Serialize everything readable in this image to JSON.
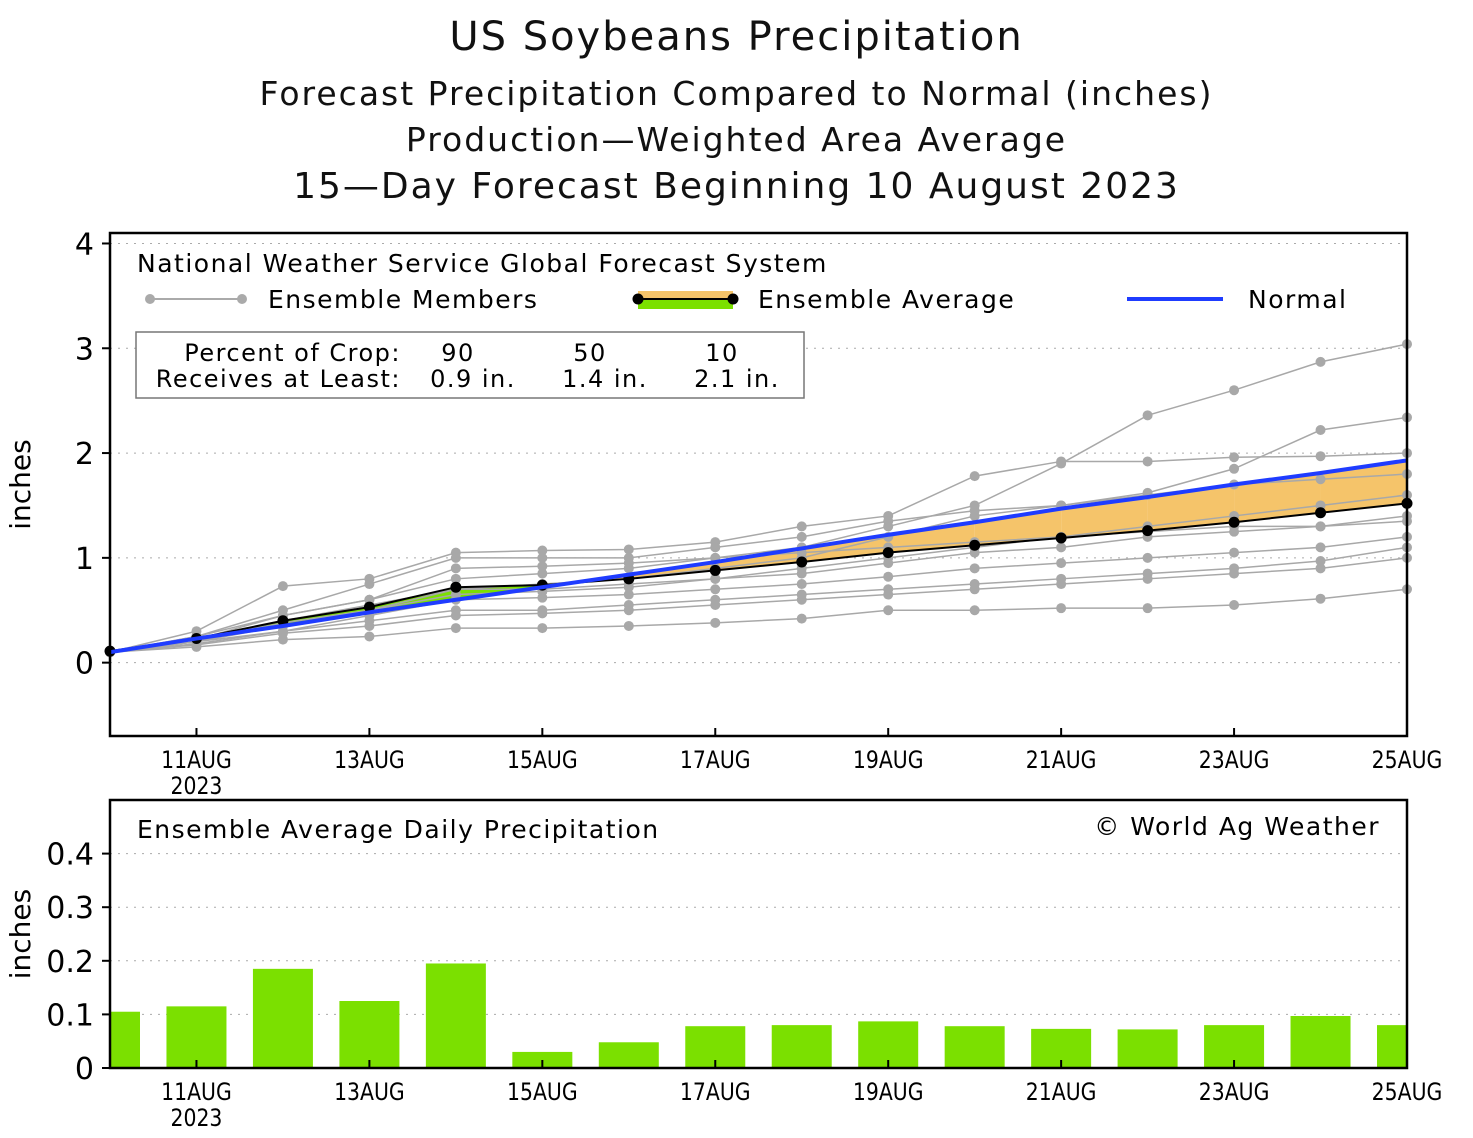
{
  "title": "US Soybeans Precipitation",
  "subtitle1": "Forecast Precipitation Compared to Normal (inches)",
  "subtitle2": "Production—Weighted Area Average",
  "subtitle3": "15—Day Forecast Beginning 10 August 2023",
  "chart_data": [
    {
      "type": "line",
      "panel_label": "National Weather Service Global Forecast System",
      "ylabel": "inches",
      "ylim": [
        -0.7,
        4.1
      ],
      "yticks": [
        "0",
        "1",
        "2",
        "3",
        "4"
      ],
      "grid": "dotted horizontal",
      "x": [
        "10AUG",
        "11AUG",
        "12AUG",
        "13AUG",
        "14AUG",
        "15AUG",
        "16AUG",
        "17AUG",
        "18AUG",
        "19AUG",
        "20AUG",
        "21AUG",
        "22AUG",
        "23AUG",
        "24AUG",
        "25AUG"
      ],
      "xticks": [
        "11AUG",
        "13AUG",
        "15AUG",
        "17AUG",
        "19AUG",
        "21AUG",
        "23AUG",
        "25AUG"
      ],
      "xtick_year": "2023",
      "legend": {
        "members": "Ensemble Members",
        "average": "Ensemble Average",
        "normal": "Normal"
      },
      "crop_box": {
        "row1_label": "Percent of Crop:",
        "row2_label": "Receives at Least:",
        "percents": [
          "90",
          "50",
          "10"
        ],
        "amounts": [
          "0.9 in.",
          "1.4 in.",
          "2.1 in."
        ]
      },
      "colors": {
        "members": "#a8a8a8",
        "average": "#000000",
        "normal": "#1f3cff",
        "above_normal": "#7be000",
        "below_normal": "#f5c46a"
      },
      "average": [
        0.11,
        0.23,
        0.4,
        0.53,
        0.72,
        0.74,
        0.8,
        0.88,
        0.96,
        1.05,
        1.12,
        1.19,
        1.26,
        1.34,
        1.43,
        1.52
      ],
      "normal": [
        0.1,
        0.23,
        0.35,
        0.48,
        0.6,
        0.72,
        0.84,
        0.96,
        1.09,
        1.22,
        1.34,
        1.47,
        1.58,
        1.7,
        1.81,
        1.93
      ],
      "members": [
        [
          0.1,
          0.25,
          0.45,
          0.6,
          0.8,
          0.85,
          0.9,
          1.0,
          1.1,
          1.3,
          1.5,
          1.9,
          2.36,
          2.6,
          2.87,
          3.04
        ],
        [
          0.1,
          0.2,
          0.35,
          0.5,
          0.7,
          0.75,
          0.8,
          0.9,
          1.0,
          1.2,
          1.4,
          1.5,
          1.62,
          1.85,
          2.22,
          2.34
        ],
        [
          0.1,
          0.3,
          0.73,
          0.8,
          1.05,
          1.07,
          1.08,
          1.15,
          1.3,
          1.4,
          1.78,
          1.92,
          1.92,
          1.96,
          1.97,
          2.0
        ],
        [
          0.1,
          0.15,
          0.22,
          0.25,
          0.33,
          0.33,
          0.35,
          0.38,
          0.42,
          0.5,
          0.5,
          0.52,
          0.52,
          0.55,
          0.61,
          0.7
        ],
        [
          0.1,
          0.2,
          0.3,
          0.4,
          0.5,
          0.5,
          0.55,
          0.6,
          0.65,
          0.7,
          0.75,
          0.8,
          0.85,
          0.9,
          0.97,
          1.1
        ],
        [
          0.1,
          0.2,
          0.4,
          0.55,
          0.7,
          0.7,
          0.75,
          0.8,
          0.85,
          0.95,
          1.05,
          1.1,
          1.2,
          1.25,
          1.3,
          1.35
        ],
        [
          0.1,
          0.25,
          0.5,
          0.75,
          1.0,
          1.0,
          1.0,
          1.1,
          1.2,
          1.35,
          1.45,
          1.5,
          1.6,
          1.7,
          1.75,
          1.8
        ],
        [
          0.1,
          0.18,
          0.3,
          0.45,
          0.6,
          0.62,
          0.65,
          0.7,
          0.75,
          0.82,
          0.9,
          0.95,
          1.0,
          1.05,
          1.1,
          1.2
        ],
        [
          0.1,
          0.22,
          0.45,
          0.6,
          0.9,
          0.92,
          0.95,
          1.0,
          1.05,
          1.1,
          1.15,
          1.2,
          1.25,
          1.3,
          1.3,
          1.4
        ],
        [
          0.1,
          0.2,
          0.38,
          0.5,
          0.65,
          0.68,
          0.72,
          0.8,
          0.9,
          1.0,
          1.1,
          1.2,
          1.3,
          1.4,
          1.5,
          1.6
        ],
        [
          0.1,
          0.17,
          0.28,
          0.35,
          0.45,
          0.47,
          0.5,
          0.55,
          0.6,
          0.65,
          0.7,
          0.75,
          0.8,
          0.85,
          0.9,
          1.0
        ]
      ]
    },
    {
      "type": "bar",
      "panel_label": "Ensemble Average Daily Precipitation",
      "credit": "© World Ag Weather",
      "ylabel": "inches",
      "ylim": [
        0,
        0.5
      ],
      "yticks": [
        "0",
        "0.1",
        "0.2",
        "0.3",
        "0.4"
      ],
      "grid": "dotted horizontal",
      "categories": [
        "10AUG",
        "11AUG",
        "12AUG",
        "13AUG",
        "14AUG",
        "15AUG",
        "16AUG",
        "17AUG",
        "18AUG",
        "19AUG",
        "20AUG",
        "21AUG",
        "22AUG",
        "23AUG",
        "24AUG",
        "25AUG"
      ],
      "xticks": [
        "11AUG",
        "13AUG",
        "15AUG",
        "17AUG",
        "19AUG",
        "21AUG",
        "23AUG",
        "25AUG"
      ],
      "xtick_year": "2023",
      "bar_color": "#7be000",
      "values": [
        0.105,
        0.115,
        0.185,
        0.125,
        0.195,
        0.03,
        0.048,
        0.078,
        0.08,
        0.087,
        0.078,
        0.073,
        0.072,
        0.08,
        0.097,
        0.08
      ]
    }
  ]
}
